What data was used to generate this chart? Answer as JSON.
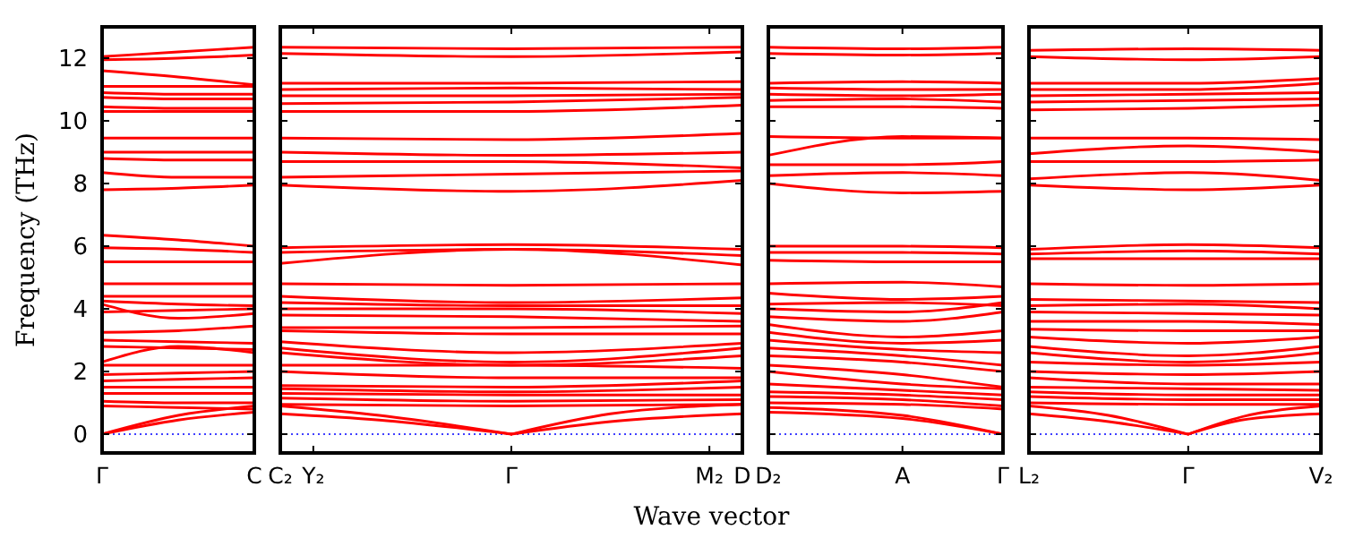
{
  "chart_data": [
    {
      "type": "line",
      "ylabel": "Frequency (THz)",
      "categories": [
        "Γ",
        null,
        "C"
      ],
      "ylim": [
        -0.6,
        13
      ],
      "yticks": [
        0,
        2,
        4,
        6,
        8,
        10,
        12
      ],
      "ref_lines": [
        {
          "axis": "y",
          "value": 0,
          "color": "#0000ff",
          "line_style": "dotted"
        }
      ],
      "series": [
        {
          "color": "#ff0000",
          "values": [
            12.05,
            12.2,
            12.35
          ]
        },
        {
          "color": "#ff0000",
          "values": [
            11.95,
            12.0,
            12.1
          ]
        },
        {
          "color": "#ff0000",
          "values": [
            11.6,
            11.4,
            11.15
          ]
        },
        {
          "color": "#ff0000",
          "values": [
            11.1,
            11.1,
            11.1
          ]
        },
        {
          "color": "#ff0000",
          "values": [
            10.9,
            10.85,
            10.85
          ]
        },
        {
          "color": "#ff0000",
          "values": [
            10.75,
            10.7,
            10.7
          ]
        },
        {
          "color": "#ff0000",
          "values": [
            10.45,
            10.4,
            10.4
          ]
        },
        {
          "color": "#ff0000",
          "values": [
            10.3,
            10.3,
            10.3
          ]
        },
        {
          "color": "#ff0000",
          "values": [
            9.45,
            9.45,
            9.45
          ]
        },
        {
          "color": "#ff0000",
          "values": [
            9.0,
            9.0,
            9.0
          ]
        },
        {
          "color": "#ff0000",
          "values": [
            8.8,
            8.75,
            8.75
          ]
        },
        {
          "color": "#ff0000",
          "values": [
            8.35,
            8.2,
            8.2
          ]
        },
        {
          "color": "#ff0000",
          "values": [
            7.8,
            7.85,
            7.95
          ]
        },
        {
          "color": "#ff0000",
          "values": [
            6.35,
            6.2,
            6.0
          ]
        },
        {
          "color": "#ff0000",
          "values": [
            5.95,
            5.9,
            5.8
          ]
        },
        {
          "color": "#ff0000",
          "values": [
            5.5,
            5.5,
            5.5
          ]
        },
        {
          "color": "#ff0000",
          "values": [
            4.8,
            4.8,
            4.8
          ]
        },
        {
          "color": "#ff0000",
          "values": [
            4.4,
            4.4,
            4.4
          ]
        },
        {
          "color": "#ff0000",
          "values": [
            4.25,
            4.15,
            4.1
          ]
        },
        {
          "color": "#ff0000",
          "values": [
            4.15,
            3.7,
            3.85
          ]
        },
        {
          "color": "#ff0000",
          "values": [
            3.9,
            3.95,
            4.0
          ]
        },
        {
          "color": "#ff0000",
          "values": [
            3.25,
            3.3,
            3.45
          ]
        },
        {
          "color": "#ff0000",
          "values": [
            3.0,
            2.95,
            2.9
          ]
        },
        {
          "color": "#ff0000",
          "values": [
            2.8,
            2.75,
            2.7
          ]
        },
        {
          "color": "#ff0000",
          "values": [
            2.3,
            2.8,
            2.6
          ]
        },
        {
          "color": "#ff0000",
          "values": [
            2.2,
            2.2,
            2.2
          ]
        },
        {
          "color": "#ff0000",
          "values": [
            1.9,
            1.95,
            2.0
          ]
        },
        {
          "color": "#ff0000",
          "values": [
            1.7,
            1.75,
            1.8
          ]
        },
        {
          "color": "#ff0000",
          "values": [
            1.5,
            1.5,
            1.5
          ]
        },
        {
          "color": "#ff0000",
          "values": [
            1.3,
            1.3,
            1.3
          ]
        },
        {
          "color": "#ff0000",
          "values": [
            1.05,
            1.0,
            1.0
          ]
        },
        {
          "color": "#ff0000",
          "values": [
            0.9,
            0.85,
            0.8
          ]
        },
        {
          "color": "#ff0000",
          "values": [
            0,
            0.6,
            0.9
          ]
        },
        {
          "color": "#ff0000",
          "values": [
            0,
            0.45,
            0.7
          ]
        }
      ]
    },
    {
      "type": "line",
      "tick_labels": "x",
      "categories": [
        "C₂",
        "Y₂",
        null,
        null,
        null,
        null,
        null,
        "Γ",
        null,
        null,
        null,
        null,
        null,
        "M₂",
        "D"
      ],
      "ylim": [
        -0.6,
        13
      ],
      "yticks": [
        0,
        2,
        4,
        6,
        8,
        10,
        12
      ],
      "xlabel": "Wave vector",
      "ref_lines": [
        {
          "axis": "y",
          "value": 0,
          "color": "#0000ff",
          "line_style": "dotted"
        }
      ],
      "series": [
        {
          "color": "#ff0000",
          "values": [
            12.35,
            null,
            null,
            null,
            null,
            null,
            null,
            12.3,
            null,
            null,
            null,
            null,
            null,
            null,
            12.35
          ]
        },
        {
          "color": "#ff0000",
          "values": [
            12.15,
            null,
            null,
            null,
            null,
            null,
            null,
            12.05,
            null,
            null,
            null,
            null,
            null,
            null,
            12.2
          ]
        },
        {
          "color": "#ff0000",
          "values": [
            11.2,
            null,
            null,
            null,
            null,
            null,
            null,
            11.2,
            null,
            null,
            null,
            null,
            null,
            null,
            11.25
          ]
        },
        {
          "color": "#ff0000",
          "values": [
            11.0,
            null,
            null,
            null,
            null,
            null,
            null,
            11.05,
            null,
            null,
            null,
            null,
            null,
            null,
            11.0
          ]
        },
        {
          "color": "#ff0000",
          "values": [
            10.8,
            null,
            null,
            null,
            null,
            null,
            null,
            10.8,
            null,
            null,
            null,
            null,
            null,
            null,
            10.85
          ]
        },
        {
          "color": "#ff0000",
          "values": [
            10.55,
            null,
            null,
            null,
            null,
            null,
            null,
            10.6,
            null,
            null,
            null,
            null,
            null,
            null,
            10.75
          ]
        },
        {
          "color": "#ff0000",
          "values": [
            10.3,
            null,
            null,
            null,
            null,
            null,
            null,
            10.3,
            null,
            null,
            null,
            null,
            null,
            null,
            10.5
          ]
        },
        {
          "color": "#ff0000",
          "values": [
            9.45,
            null,
            null,
            null,
            null,
            null,
            null,
            9.4,
            null,
            null,
            null,
            null,
            null,
            null,
            9.6
          ]
        },
        {
          "color": "#ff0000",
          "values": [
            9.0,
            null,
            null,
            null,
            null,
            null,
            null,
            8.9,
            null,
            null,
            null,
            null,
            null,
            null,
            9.0
          ]
        },
        {
          "color": "#ff0000",
          "values": [
            8.7,
            null,
            null,
            null,
            null,
            null,
            null,
            8.7,
            null,
            null,
            null,
            null,
            null,
            null,
            8.5
          ]
        },
        {
          "color": "#ff0000",
          "values": [
            8.2,
            null,
            null,
            null,
            null,
            null,
            null,
            8.3,
            null,
            null,
            null,
            null,
            null,
            null,
            8.4
          ]
        },
        {
          "color": "#ff0000",
          "values": [
            7.95,
            null,
            null,
            null,
            null,
            null,
            null,
            7.75,
            null,
            null,
            null,
            null,
            null,
            null,
            8.1
          ]
        },
        {
          "color": "#ff0000",
          "values": [
            5.95,
            null,
            null,
            null,
            null,
            null,
            null,
            6.05,
            null,
            null,
            null,
            null,
            null,
            null,
            5.9
          ]
        },
        {
          "color": "#ff0000",
          "values": [
            5.8,
            null,
            null,
            null,
            null,
            null,
            null,
            5.9,
            null,
            null,
            null,
            null,
            null,
            null,
            5.7
          ]
        },
        {
          "color": "#ff0000",
          "values": [
            5.45,
            null,
            null,
            null,
            null,
            null,
            null,
            5.9,
            null,
            null,
            null,
            null,
            null,
            null,
            5.4
          ]
        },
        {
          "color": "#ff0000",
          "values": [
            4.8,
            null,
            null,
            null,
            null,
            null,
            null,
            4.75,
            null,
            null,
            null,
            null,
            null,
            null,
            4.8
          ]
        },
        {
          "color": "#ff0000",
          "values": [
            4.4,
            null,
            null,
            null,
            null,
            null,
            null,
            4.2,
            null,
            null,
            null,
            null,
            null,
            null,
            4.35
          ]
        },
        {
          "color": "#ff0000",
          "values": [
            4.2,
            null,
            null,
            null,
            null,
            null,
            null,
            4.1,
            null,
            null,
            null,
            null,
            null,
            null,
            4.1
          ]
        },
        {
          "color": "#ff0000",
          "values": [
            4.0,
            null,
            null,
            null,
            null,
            null,
            null,
            4.0,
            null,
            null,
            null,
            null,
            null,
            null,
            3.85
          ]
        },
        {
          "color": "#ff0000",
          "values": [
            3.8,
            null,
            null,
            null,
            null,
            null,
            null,
            3.75,
            null,
            null,
            null,
            null,
            null,
            null,
            3.6
          ]
        },
        {
          "color": "#ff0000",
          "values": [
            3.4,
            null,
            null,
            null,
            null,
            null,
            null,
            3.4,
            null,
            null,
            null,
            null,
            null,
            null,
            3.45
          ]
        },
        {
          "color": "#ff0000",
          "values": [
            3.3,
            null,
            null,
            null,
            null,
            null,
            null,
            3.2,
            null,
            null,
            null,
            null,
            null,
            null,
            3.2
          ]
        },
        {
          "color": "#ff0000",
          "values": [
            2.95,
            null,
            null,
            null,
            null,
            null,
            null,
            2.6,
            null,
            null,
            null,
            null,
            null,
            null,
            2.9
          ]
        },
        {
          "color": "#ff0000",
          "values": [
            2.75,
            null,
            null,
            null,
            null,
            null,
            null,
            2.3,
            null,
            null,
            null,
            null,
            null,
            null,
            2.75
          ]
        },
        {
          "color": "#ff0000",
          "values": [
            2.6,
            null,
            null,
            null,
            null,
            null,
            null,
            2.2,
            null,
            null,
            null,
            null,
            null,
            null,
            2.5
          ]
        },
        {
          "color": "#ff0000",
          "values": [
            2.2,
            null,
            null,
            null,
            null,
            null,
            null,
            2.2,
            null,
            null,
            null,
            null,
            null,
            null,
            2.1
          ]
        },
        {
          "color": "#ff0000",
          "values": [
            2.0,
            null,
            null,
            null,
            null,
            null,
            null,
            1.8,
            null,
            null,
            null,
            null,
            null,
            null,
            1.8
          ]
        },
        {
          "color": "#ff0000",
          "values": [
            1.55,
            null,
            null,
            null,
            null,
            null,
            null,
            1.5,
            null,
            null,
            null,
            null,
            null,
            null,
            1.7
          ]
        },
        {
          "color": "#ff0000",
          "values": [
            1.45,
            null,
            null,
            null,
            null,
            null,
            null,
            1.35,
            null,
            null,
            null,
            null,
            null,
            null,
            1.5
          ]
        },
        {
          "color": "#ff0000",
          "values": [
            1.3,
            null,
            null,
            null,
            null,
            null,
            null,
            1.25,
            null,
            null,
            null,
            null,
            null,
            null,
            1.25
          ]
        },
        {
          "color": "#ff0000",
          "values": [
            1.15,
            null,
            null,
            null,
            null,
            null,
            null,
            1.05,
            null,
            null,
            null,
            null,
            null,
            null,
            1.1
          ]
        },
        {
          "color": "#ff0000",
          "values": [
            0.95,
            null,
            null,
            null,
            null,
            null,
            null,
            0.9,
            null,
            null,
            null,
            null,
            null,
            null,
            0.95
          ]
        },
        {
          "color": "#ff0000",
          "values": [
            0.9,
            null,
            null,
            0.6,
            null,
            null,
            null,
            0,
            null,
            null,
            null,
            null,
            null,
            null,
            null
          ]
        },
        {
          "color": "#ff0000",
          "values": [
            0.65,
            null,
            null,
            0.45,
            null,
            null,
            null,
            0,
            null,
            null,
            null,
            null,
            null,
            null,
            null
          ]
        },
        {
          "color": "#ff0000",
          "values": [
            null,
            null,
            null,
            null,
            null,
            null,
            null,
            0,
            null,
            null,
            0.65,
            null,
            null,
            null,
            0.95
          ]
        },
        {
          "color": "#ff0000",
          "values": [
            null,
            null,
            null,
            null,
            null,
            null,
            null,
            0,
            null,
            null,
            0.4,
            null,
            null,
            null,
            0.65
          ]
        }
      ]
    },
    {
      "type": "line",
      "tick_labels": "x",
      "categories": [
        "D₂",
        null,
        null,
        null,
        "A",
        null,
        null,
        "Γ"
      ],
      "ylim": [
        -0.6,
        13
      ],
      "yticks": [
        0,
        2,
        4,
        6,
        8,
        10,
        12
      ],
      "ref_lines": [
        {
          "axis": "y",
          "value": 0,
          "color": "#0000ff",
          "line_style": "dotted"
        }
      ],
      "series": [
        {
          "color": "#ff0000",
          "values": [
            12.35,
            null,
            null,
            null,
            12.3,
            null,
            null,
            12.35
          ]
        },
        {
          "color": "#ff0000",
          "values": [
            12.15,
            null,
            null,
            null,
            12.1,
            null,
            null,
            12.15
          ]
        },
        {
          "color": "#ff0000",
          "values": [
            11.2,
            null,
            null,
            null,
            11.25,
            null,
            null,
            11.2
          ]
        },
        {
          "color": "#ff0000",
          "values": [
            11.05,
            null,
            null,
            null,
            11.0,
            null,
            null,
            11.0
          ]
        },
        {
          "color": "#ff0000",
          "values": [
            10.85,
            null,
            null,
            null,
            10.8,
            null,
            null,
            10.85
          ]
        },
        {
          "color": "#ff0000",
          "values": [
            10.65,
            null,
            null,
            null,
            10.7,
            null,
            null,
            10.6
          ]
        },
        {
          "color": "#ff0000",
          "values": [
            10.45,
            null,
            null,
            null,
            10.45,
            null,
            null,
            10.4
          ]
        },
        {
          "color": "#ff0000",
          "values": [
            9.5,
            null,
            null,
            null,
            9.45,
            null,
            null,
            9.45
          ]
        },
        {
          "color": "#ff0000",
          "values": [
            8.9,
            null,
            null,
            null,
            9.5,
            null,
            null,
            9.45
          ]
        },
        {
          "color": "#ff0000",
          "values": [
            8.6,
            null,
            null,
            null,
            8.6,
            null,
            null,
            8.7
          ]
        },
        {
          "color": "#ff0000",
          "values": [
            8.25,
            null,
            null,
            null,
            8.35,
            null,
            null,
            8.25
          ]
        },
        {
          "color": "#ff0000",
          "values": [
            8.0,
            null,
            null,
            null,
            7.7,
            null,
            null,
            7.75
          ]
        },
        {
          "color": "#ff0000",
          "values": [
            6.0,
            null,
            null,
            null,
            6.0,
            null,
            null,
            5.95
          ]
        },
        {
          "color": "#ff0000",
          "values": [
            5.8,
            null,
            null,
            null,
            5.8,
            null,
            null,
            5.75
          ]
        },
        {
          "color": "#ff0000",
          "values": [
            5.55,
            null,
            null,
            null,
            5.5,
            null,
            null,
            5.5
          ]
        },
        {
          "color": "#ff0000",
          "values": [
            4.8,
            null,
            null,
            null,
            4.85,
            null,
            null,
            4.7
          ]
        },
        {
          "color": "#ff0000",
          "values": [
            4.5,
            null,
            null,
            null,
            4.3,
            null,
            null,
            4.4
          ]
        },
        {
          "color": "#ff0000",
          "values": [
            4.15,
            null,
            null,
            null,
            4.2,
            null,
            null,
            4.1
          ]
        },
        {
          "color": "#ff0000",
          "values": [
            4.0,
            null,
            null,
            null,
            3.9,
            null,
            null,
            4.2
          ]
        },
        {
          "color": "#ff0000",
          "values": [
            3.75,
            null,
            null,
            null,
            3.6,
            null,
            null,
            3.9
          ]
        },
        {
          "color": "#ff0000",
          "values": [
            3.5,
            null,
            null,
            null,
            3.1,
            null,
            null,
            3.3
          ]
        },
        {
          "color": "#ff0000",
          "values": [
            3.25,
            null,
            null,
            null,
            2.9,
            null,
            null,
            3.0
          ]
        },
        {
          "color": "#ff0000",
          "values": [
            3.0,
            null,
            null,
            null,
            2.7,
            null,
            null,
            2.6
          ]
        },
        {
          "color": "#ff0000",
          "values": [
            2.75,
            null,
            null,
            null,
            2.5,
            null,
            null,
            2.2
          ]
        },
        {
          "color": "#ff0000",
          "values": [
            2.5,
            null,
            null,
            null,
            2.3,
            null,
            null,
            2.0
          ]
        },
        {
          "color": "#ff0000",
          "values": [
            2.2,
            null,
            null,
            null,
            1.9,
            null,
            null,
            1.5
          ]
        },
        {
          "color": "#ff0000",
          "values": [
            2.0,
            null,
            null,
            null,
            1.6,
            null,
            null,
            1.45
          ]
        },
        {
          "color": "#ff0000",
          "values": [
            1.6,
            null,
            null,
            null,
            1.4,
            null,
            null,
            1.25
          ]
        },
        {
          "color": "#ff0000",
          "values": [
            1.35,
            null,
            null,
            null,
            1.25,
            null,
            null,
            1.1
          ]
        },
        {
          "color": "#ff0000",
          "values": [
            1.2,
            null,
            null,
            null,
            1.1,
            null,
            null,
            0.9
          ]
        },
        {
          "color": "#ff0000",
          "values": [
            1.0,
            null,
            null,
            null,
            0.95,
            null,
            null,
            0.8
          ]
        },
        {
          "color": "#ff0000",
          "values": [
            0.85,
            null,
            null,
            null,
            0.6,
            null,
            null,
            0
          ]
        },
        {
          "color": "#ff0000",
          "values": [
            0.7,
            null,
            null,
            null,
            0.5,
            null,
            null,
            0
          ]
        }
      ]
    },
    {
      "type": "line",
      "tick_labels": "x",
      "categories": [
        "L₂",
        null,
        null,
        null,
        null,
        null,
        "Γ",
        null,
        null,
        null,
        null,
        "V₂"
      ],
      "ylim": [
        -0.6,
        13
      ],
      "yticks": [
        0,
        2,
        4,
        6,
        8,
        10,
        12
      ],
      "ref_lines": [
        {
          "axis": "y",
          "value": 0,
          "color": "#0000ff",
          "line_style": "dotted"
        }
      ],
      "series": [
        {
          "color": "#ff0000",
          "values": [
            12.25,
            null,
            null,
            null,
            null,
            null,
            12.3,
            null,
            null,
            null,
            null,
            12.25
          ]
        },
        {
          "color": "#ff0000",
          "values": [
            12.05,
            null,
            null,
            null,
            null,
            null,
            11.95,
            null,
            null,
            null,
            null,
            12.05
          ]
        },
        {
          "color": "#ff0000",
          "values": [
            11.2,
            null,
            null,
            null,
            null,
            null,
            11.2,
            null,
            null,
            null,
            null,
            11.35
          ]
        },
        {
          "color": "#ff0000",
          "values": [
            11.0,
            null,
            null,
            null,
            null,
            null,
            11.0,
            null,
            null,
            null,
            null,
            11.2
          ]
        },
        {
          "color": "#ff0000",
          "values": [
            10.8,
            null,
            null,
            null,
            null,
            null,
            10.85,
            null,
            null,
            null,
            null,
            10.9
          ]
        },
        {
          "color": "#ff0000",
          "values": [
            10.6,
            null,
            null,
            null,
            null,
            null,
            10.65,
            null,
            null,
            null,
            null,
            10.7
          ]
        },
        {
          "color": "#ff0000",
          "values": [
            10.35,
            null,
            null,
            null,
            null,
            null,
            10.4,
            null,
            null,
            null,
            null,
            10.5
          ]
        },
        {
          "color": "#ff0000",
          "values": [
            9.45,
            null,
            null,
            null,
            null,
            null,
            9.45,
            null,
            null,
            null,
            null,
            9.4
          ]
        },
        {
          "color": "#ff0000",
          "values": [
            8.95,
            null,
            null,
            null,
            null,
            null,
            9.2,
            null,
            null,
            null,
            null,
            9.0
          ]
        },
        {
          "color": "#ff0000",
          "values": [
            8.7,
            null,
            null,
            null,
            null,
            null,
            8.7,
            null,
            null,
            null,
            null,
            8.75
          ]
        },
        {
          "color": "#ff0000",
          "values": [
            8.15,
            null,
            null,
            null,
            null,
            null,
            8.35,
            null,
            null,
            null,
            null,
            8.1
          ]
        },
        {
          "color": "#ff0000",
          "values": [
            7.95,
            null,
            null,
            null,
            null,
            null,
            7.8,
            null,
            null,
            null,
            null,
            7.95
          ]
        },
        {
          "color": "#ff0000",
          "values": [
            5.9,
            null,
            null,
            null,
            null,
            null,
            6.05,
            null,
            null,
            null,
            null,
            5.95
          ]
        },
        {
          "color": "#ff0000",
          "values": [
            5.75,
            null,
            null,
            null,
            null,
            null,
            5.85,
            null,
            null,
            null,
            null,
            5.75
          ]
        },
        {
          "color": "#ff0000",
          "values": [
            5.6,
            null,
            null,
            null,
            null,
            null,
            5.6,
            null,
            null,
            null,
            null,
            5.6
          ]
        },
        {
          "color": "#ff0000",
          "values": [
            4.8,
            null,
            null,
            null,
            null,
            null,
            4.75,
            null,
            null,
            null,
            null,
            4.8
          ]
        },
        {
          "color": "#ff0000",
          "values": [
            4.3,
            null,
            null,
            null,
            null,
            null,
            4.25,
            null,
            null,
            null,
            null,
            4.2
          ]
        },
        {
          "color": "#ff0000",
          "values": [
            4.1,
            null,
            null,
            null,
            null,
            null,
            4.15,
            null,
            null,
            null,
            null,
            4.0
          ]
        },
        {
          "color": "#ff0000",
          "values": [
            3.9,
            null,
            null,
            null,
            null,
            null,
            3.85,
            null,
            null,
            null,
            null,
            3.8
          ]
        },
        {
          "color": "#ff0000",
          "values": [
            3.6,
            null,
            null,
            null,
            null,
            null,
            3.6,
            null,
            null,
            null,
            null,
            3.5
          ]
        },
        {
          "color": "#ff0000",
          "values": [
            3.35,
            null,
            null,
            null,
            null,
            null,
            3.3,
            null,
            null,
            null,
            null,
            3.3
          ]
        },
        {
          "color": "#ff0000",
          "values": [
            3.1,
            null,
            null,
            null,
            null,
            null,
            2.9,
            null,
            null,
            null,
            null,
            3.1
          ]
        },
        {
          "color": "#ff0000",
          "values": [
            2.8,
            null,
            null,
            null,
            null,
            null,
            2.5,
            null,
            null,
            null,
            null,
            2.8
          ]
        },
        {
          "color": "#ff0000",
          "values": [
            2.6,
            null,
            null,
            null,
            null,
            null,
            2.3,
            null,
            null,
            null,
            null,
            2.6
          ]
        },
        {
          "color": "#ff0000",
          "values": [
            2.3,
            null,
            null,
            null,
            null,
            null,
            2.2,
            null,
            null,
            null,
            null,
            2.3
          ]
        },
        {
          "color": "#ff0000",
          "values": [
            2.0,
            null,
            null,
            null,
            null,
            null,
            1.9,
            null,
            null,
            null,
            null,
            2.0
          ]
        },
        {
          "color": "#ff0000",
          "values": [
            1.8,
            null,
            null,
            null,
            null,
            null,
            1.6,
            null,
            null,
            null,
            null,
            1.6
          ]
        },
        {
          "color": "#ff0000",
          "values": [
            1.5,
            null,
            null,
            null,
            null,
            null,
            1.45,
            null,
            null,
            null,
            null,
            1.4
          ]
        },
        {
          "color": "#ff0000",
          "values": [
            1.35,
            null,
            null,
            null,
            null,
            null,
            1.25,
            null,
            null,
            null,
            null,
            1.25
          ]
        },
        {
          "color": "#ff0000",
          "values": [
            1.2,
            null,
            null,
            null,
            null,
            null,
            1.1,
            null,
            null,
            null,
            null,
            1.1
          ]
        },
        {
          "color": "#ff0000",
          "values": [
            1.0,
            null,
            null,
            null,
            null,
            null,
            0.95,
            null,
            null,
            null,
            null,
            0.95
          ]
        },
        {
          "color": "#ff0000",
          "values": [
            0.9,
            null,
            null,
            0.6,
            null,
            null,
            0,
            null,
            null,
            null,
            null,
            null
          ]
        },
        {
          "color": "#ff0000",
          "values": [
            0.65,
            null,
            null,
            0.4,
            null,
            null,
            0,
            null,
            null,
            null,
            null,
            null
          ]
        },
        {
          "color": "#ff0000",
          "values": [
            null,
            null,
            null,
            null,
            null,
            null,
            0,
            null,
            0.55,
            null,
            null,
            0.9
          ]
        },
        {
          "color": "#ff0000",
          "values": [
            null,
            null,
            null,
            null,
            null,
            null,
            0,
            null,
            0.45,
            null,
            null,
            0.65
          ]
        }
      ]
    }
  ]
}
